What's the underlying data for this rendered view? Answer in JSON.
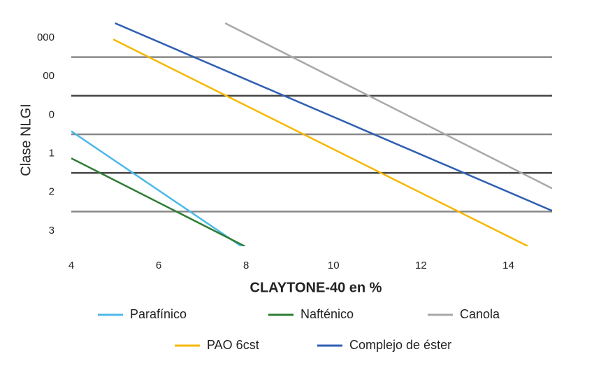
{
  "chart_data": {
    "type": "line",
    "xlabel": "CLAYTONE-40 en %",
    "ylabel": "Clase NLGI",
    "xlim": [
      4,
      15
    ],
    "xticks": [
      4,
      6,
      8,
      10,
      12,
      14
    ],
    "ylim": [
      5.4,
      -0.4
    ],
    "yticks": [
      {
        "value": 0,
        "label": "000"
      },
      {
        "value": 1,
        "label": "00"
      },
      {
        "value": 2,
        "label": "0"
      },
      {
        "value": 3,
        "label": "1"
      },
      {
        "value": 4,
        "label": "2"
      },
      {
        "value": 5,
        "label": "3"
      }
    ],
    "grid": true,
    "series": [
      {
        "name": "Parafínico",
        "color": "#4db8e8",
        "x": [
          4,
          7.89
        ],
        "values": [
          2.42,
          5.4
        ]
      },
      {
        "name": "Nafténico",
        "color": "#2e7d32",
        "x": [
          4,
          7.97
        ],
        "values": [
          3.12,
          5.4
        ]
      },
      {
        "name": "Canola",
        "color": "#a8a8a8",
        "x": [
          7.52,
          15
        ],
        "values": [
          -0.38,
          3.9
        ]
      },
      {
        "name": "PAO 6cst",
        "color": "#f5b800",
        "x": [
          4.96,
          14.45
        ],
        "values": [
          0.04,
          5.4
        ]
      },
      {
        "name": "Complejo de éster",
        "color": "#2f5fb3",
        "x": [
          5.0,
          15
        ],
        "values": [
          -0.38,
          4.48
        ]
      }
    ]
  }
}
